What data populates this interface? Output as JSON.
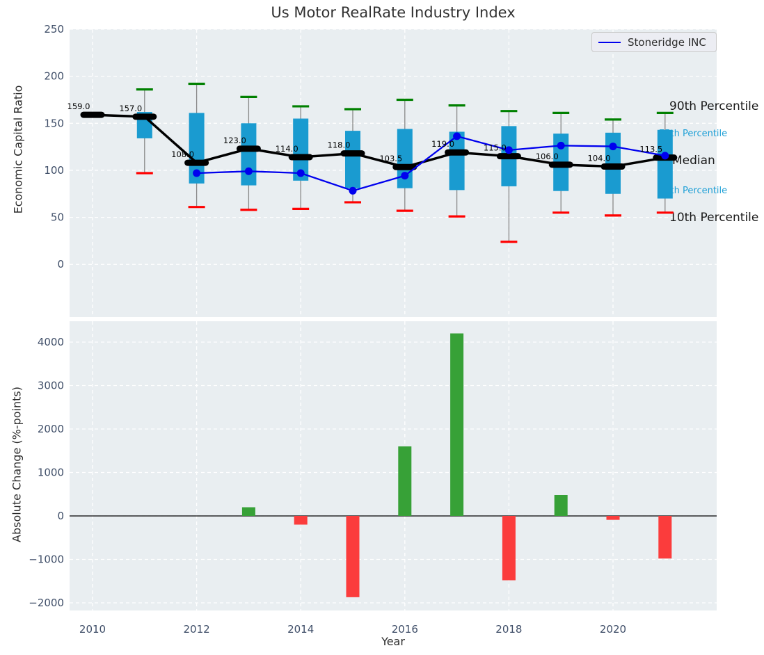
{
  "title": "Us Motor RealRate Industry Index",
  "colors": {
    "plot_bg": "#e9eef1",
    "grid": "#ffffff",
    "box": "#1a9bd0",
    "cap_high": "#008000",
    "cap_low": "#ff0000",
    "whisker": "#888888",
    "median_line": "#000000",
    "company_line": "#0000ee",
    "bar_pos": "#37a137",
    "bar_neg": "#fb3c3c",
    "tick_label": "#3f4e68",
    "text": "#2b2b2b",
    "annotation_black": "#1a1a1a",
    "annotation_cyan": "#1d9fd6",
    "legend_bg": "#ecedf3",
    "legend_border": "#c9c9c9",
    "zero_line": "#000000"
  },
  "chart_data": [
    {
      "type": "boxplot+line",
      "title": "Us Motor RealRate Industry Index",
      "ylabel": "Economic Capital Ratio",
      "ylim": [
        -56,
        250
      ],
      "yticks": [
        0,
        50,
        100,
        150,
        200,
        250
      ],
      "grid": true,
      "categories": [
        2010,
        2011,
        2012,
        2013,
        2014,
        2015,
        2016,
        2017,
        2018,
        2019,
        2020,
        2021
      ],
      "series": [
        {
          "name": "10th Percentile",
          "values": [
            null,
            97,
            61,
            58,
            59,
            66,
            57,
            51,
            24,
            55,
            52,
            55
          ]
        },
        {
          "name": "25th Percentile",
          "values": [
            158.5,
            134,
            86,
            84,
            89,
            81,
            81,
            79,
            83,
            78,
            75,
            70
          ]
        },
        {
          "name": "Median",
          "values": [
            159,
            157,
            108,
            123,
            114,
            118,
            103.5,
            119,
            115,
            106,
            104,
            113.5
          ]
        },
        {
          "name": "75th Percentile",
          "values": [
            160,
            162,
            161,
            150,
            155,
            142,
            144,
            141,
            147,
            139,
            140,
            143
          ]
        },
        {
          "name": "90th Percentile",
          "values": [
            160.5,
            186,
            192,
            178,
            168,
            165,
            175,
            169,
            163,
            161,
            154,
            161
          ]
        }
      ],
      "median_labels": [
        "159.0",
        "157.0",
        "108.0",
        "123.0",
        "114.0",
        "118.0",
        "103.5",
        "119.0",
        "115.0",
        "106.0",
        "104.0",
        "113.5"
      ],
      "line_series": {
        "name": "Stoneridge INC",
        "x": [
          2012,
          2013,
          2014,
          2015,
          2016,
          2017,
          2018,
          2019,
          2020,
          2021
        ],
        "values": [
          97,
          99,
          97,
          78.3,
          94.3,
          136.3,
          121.5,
          126.3,
          125.4,
          115.6
        ]
      },
      "right_annotations": [
        {
          "label": "90th Percentile",
          "x": 962,
          "y": 158,
          "size": 17,
          "color": "black"
        },
        {
          "label": "75th Percentile",
          "x": 947,
          "y": 196,
          "size": 13,
          "color": "cyan"
        },
        {
          "label": "Median",
          "x": 966,
          "y": 236,
          "size": 17,
          "color": "black"
        },
        {
          "label": "25th Percentile",
          "x": 947,
          "y": 278,
          "size": 13,
          "color": "cyan"
        },
        {
          "label": "10th Percentile",
          "x": 962,
          "y": 318,
          "size": 17,
          "color": "black"
        }
      ],
      "legend": {
        "label": "Stoneridge INC"
      }
    },
    {
      "type": "bar",
      "ylabel": "Absolute Change (%-points)",
      "xlabel": "Year",
      "ylim": [
        -2176,
        4480
      ],
      "yticks": [
        -2000,
        -1000,
        0,
        1000,
        2000,
        3000,
        4000
      ],
      "grid": true,
      "categories": [
        2010,
        2011,
        2012,
        2013,
        2014,
        2015,
        2016,
        2017,
        2018,
        2019,
        2020,
        2021
      ],
      "values": [
        null,
        null,
        null,
        200,
        -200,
        -1870,
        1600,
        4200,
        -1480,
        480,
        -90,
        -980
      ],
      "xtick_labels": [
        "2010",
        "2012",
        "2014",
        "2016",
        "2018",
        "2020"
      ]
    }
  ]
}
